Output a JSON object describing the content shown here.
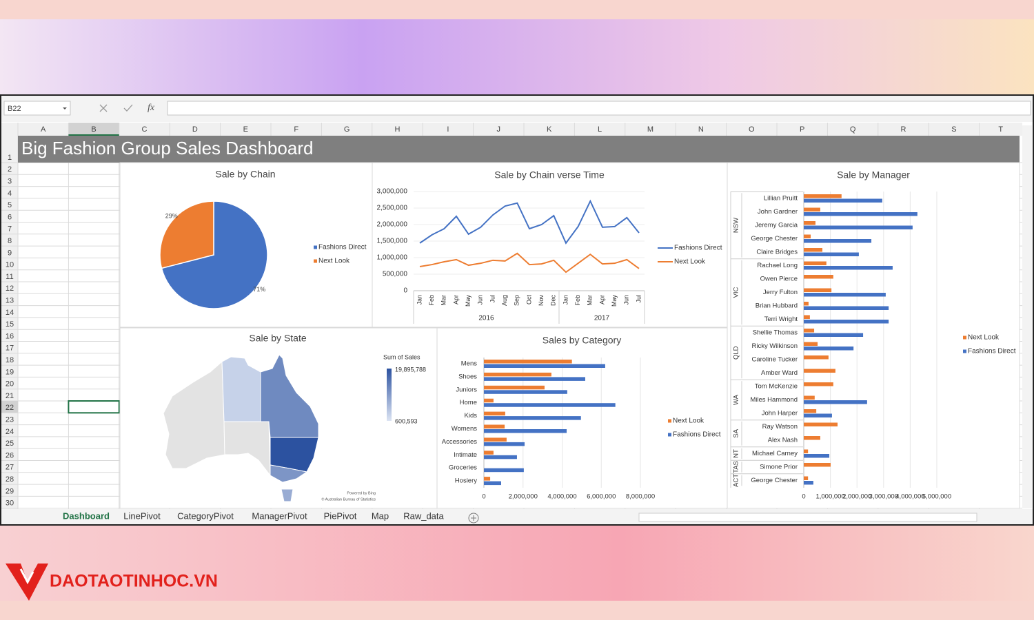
{
  "logo": "DAOTAOTINHOC.VN",
  "name_box": "B22",
  "formula_icon": "fx",
  "columns": [
    "A",
    "B",
    "C",
    "D",
    "E",
    "F",
    "G",
    "H",
    "I",
    "J",
    "K",
    "L",
    "M",
    "N",
    "O",
    "P",
    "Q",
    "R",
    "S",
    "T"
  ],
  "rows": [
    1,
    2,
    3,
    4,
    5,
    6,
    7,
    8,
    9,
    10,
    11,
    12,
    13,
    14,
    15,
    16,
    17,
    18,
    19,
    20,
    21,
    22,
    23,
    24,
    25,
    26,
    27,
    28,
    29,
    30
  ],
  "dashboard_title": "Big Fashion Group Sales Dashboard",
  "sheet_tabs": [
    "Dashboard",
    "LinePivot",
    "CategoryPivot",
    "ManagerPivot",
    "PiePivot",
    "Map",
    "Raw_data"
  ],
  "chart_data": [
    {
      "type": "pie",
      "title": "Sale by Chain",
      "categories": [
        "Fashions Direct",
        "Next Look"
      ],
      "values": [
        71,
        29
      ],
      "value_labels": [
        "71%",
        "29%"
      ],
      "colors": [
        "#4472c4",
        "#ed7d31"
      ]
    },
    {
      "type": "line",
      "title": "Sale by Chain verse Time",
      "categories": [
        "Jan",
        "Feb",
        "Mar",
        "Apr",
        "May",
        "Jun",
        "Jul",
        "Aug",
        "Sep",
        "Oct",
        "Nov",
        "Dec",
        "Jan",
        "Feb",
        "Mar",
        "Apr",
        "May",
        "Jun",
        "Jul"
      ],
      "year_labels": [
        "2016",
        "2017"
      ],
      "series": [
        {
          "name": "Fashions Direct",
          "color": "#4472c4",
          "values": [
            1440000,
            1690000,
            1875000,
            2250000,
            1710000,
            1920000,
            2290000,
            2560000,
            2650000,
            1875000,
            2000000,
            2270000,
            1440000,
            1940000,
            2710000,
            1920000,
            1940000,
            2210000,
            1750000
          ]
        },
        {
          "name": "Next Look",
          "color": "#ed7d31",
          "values": [
            730000,
            790000,
            875000,
            940000,
            770000,
            830000,
            920000,
            900000,
            1130000,
            790000,
            810000,
            920000,
            560000,
            830000,
            1100000,
            810000,
            830000,
            940000,
            670000
          ]
        }
      ],
      "ylim": [
        0,
        3000000
      ],
      "yticks": [
        0,
        {
          "value": 500000,
          "label": "500,000"
        },
        {
          "value": 1000000,
          "label": "1,000,000"
        },
        {
          "value": 1500000,
          "label": "1,500,000"
        },
        {
          "value": 2000000,
          "label": "2,000,000"
        },
        {
          "value": 2500000,
          "label": "2,500,000"
        },
        {
          "value": 3000000,
          "label": "3,000,000"
        }
      ]
    },
    {
      "type": "map",
      "title": "Sale by State",
      "values": [
        null,
        3000000,
        null,
        12500000,
        19895788,
        11000000,
        8000000
      ],
      "legend_title": "Sum of Sales",
      "legend_max": {
        "value": 19895788,
        "label": "19,895,788"
      },
      "legend_min": {
        "value": 600593,
        "label": "600,593"
      },
      "colors": [
        "#dce4f3",
        "#2c52a0"
      ],
      "credits": [
        "Powered by Bing",
        "© Australian Bureau of Statistics"
      ]
    },
    {
      "type": "hbar",
      "title": "Sales by Category",
      "categories": [
        "Mens",
        "Shoes",
        "Juniors",
        "Home",
        "Kids",
        "Womens",
        "Accessories",
        "Intimate",
        "Groceries",
        "Hosiery"
      ],
      "series": [
        {
          "name": "Next Look",
          "color": "#ed7d31",
          "values": [
            4500000,
            3450000,
            3100000,
            490000,
            1090000,
            1060000,
            1160000,
            490000,
            0,
            320000
          ]
        },
        {
          "name": "Fashions Direct",
          "color": "#4472c4",
          "values": [
            6200000,
            5180000,
            4260000,
            6720000,
            4960000,
            4230000,
            2080000,
            1690000,
            2040000,
            880000
          ]
        }
      ],
      "xlim": [
        0,
        8000000
      ],
      "xticks": [
        0,
        {
          "value": 2000000,
          "label": "2,000,000"
        },
        {
          "value": 4000000,
          "label": "4,000,000"
        },
        {
          "value": 6000000,
          "label": "6,000,000"
        },
        {
          "value": 8000000,
          "label": "8,000,000"
        }
      ]
    },
    {
      "type": "hbar",
      "title": "Sale by Manager",
      "groups": [
        {
          "label": "NSW",
          "categories": [
            "Lillian Pruitt",
            "John Gardner",
            "Jeremy Garcia",
            "George Chester",
            "Claire Bridges"
          ]
        },
        {
          "label": "VIC",
          "categories": [
            "Rachael Long",
            "Owen Pierce",
            "Jerry Fulton",
            "Brian Hubbard",
            "Terri Wright"
          ]
        },
        {
          "label": "QLD",
          "categories": [
            "Shellie Thomas",
            "Ricky Wilkinson",
            "Caroline Tucker",
            "Amber Ward"
          ]
        },
        {
          "label": "WA",
          "categories": [
            "Tom McKenzie",
            "Miles Hammond",
            "John Harper"
          ]
        },
        {
          "label": "SA",
          "categories": [
            "Ray Watson",
            "Alex Nash"
          ]
        },
        {
          "label": "NT",
          "categories": [
            "Michael Carney"
          ]
        },
        {
          "label": "TAS",
          "categories": [
            "Simone Prior"
          ]
        },
        {
          "label": "ACT",
          "categories": [
            "George Chester"
          ]
        }
      ],
      "series": [
        {
          "name": "Next Look",
          "color": "#ed7d31",
          "values": [
            1420000,
            620000,
            440000,
            260000,
            700000,
            850000,
            1110000,
            1040000,
            180000,
            230000,
            390000,
            520000,
            930000,
            1190000,
            1110000,
            410000,
            470000,
            1270000,
            620000,
            160000,
            1010000,
            160000
          ]
        },
        {
          "name": "Fashions Direct",
          "color": "#4472c4",
          "values": [
            2950000,
            4270000,
            4090000,
            2540000,
            2070000,
            3340000,
            0,
            3080000,
            3190000,
            3190000,
            2230000,
            1870000,
            0,
            0,
            0,
            2380000,
            1060000,
            0,
            0,
            960000,
            0,
            360000
          ]
        }
      ],
      "xlim": [
        0,
        5000000
      ],
      "xticks": [
        0,
        {
          "value": 1000000,
          "label": "1,000,000"
        },
        {
          "value": 2000000,
          "label": "2,000,000"
        },
        {
          "value": 3000000,
          "label": "3,000,000"
        },
        {
          "value": 4000000,
          "label": "4,000,000"
        },
        {
          "value": 5000000,
          "label": "5,000,000"
        }
      ]
    }
  ]
}
